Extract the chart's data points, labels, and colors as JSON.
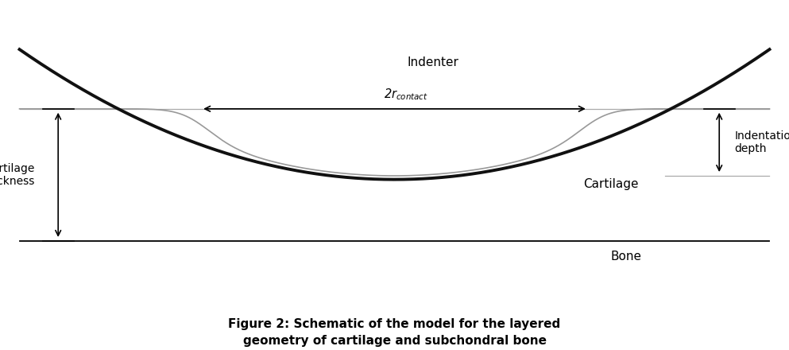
{
  "title": "Figure 2: Schematic of the model for the layered\ngeometry of cartilage and subchondral bone",
  "title_fontsize": 11,
  "bg_color": "#ffffff",
  "indenter_color": "#111111",
  "cartilage_color": "#999999",
  "bone_color": "#000000",
  "annotation_color": "#000000",
  "indenter_label": "Indenter",
  "indentation_label": "Indentation\ndepth",
  "cartilage_thickness_label": "Cartilage\nthickness",
  "cartilage_label": "Cartilage",
  "bone_label": "Bone",
  "xlim": [
    -5,
    5
  ],
  "ylim": [
    -4.0,
    5.0
  ],
  "indenter_a": 0.18,
  "indenter_min_y": -0.5,
  "cartilage_flat_y": 1.8,
  "bone_y": -2.5,
  "contact_half_x": 2.5
}
